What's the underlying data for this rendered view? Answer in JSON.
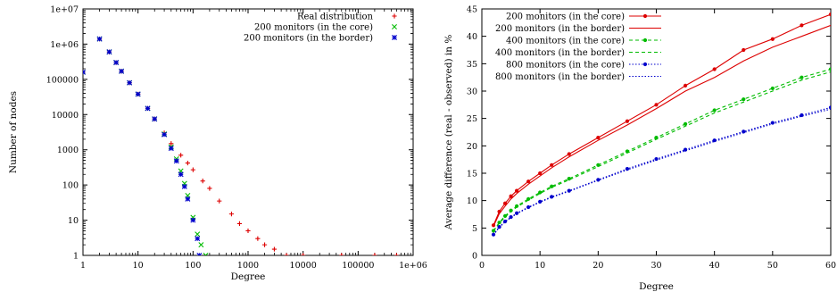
{
  "chart_data": [
    {
      "type": "scatter",
      "xlabel": "Degree",
      "ylabel": "Number of nodes",
      "xscale": "log",
      "yscale": "log",
      "xlim": [
        1,
        1000000
      ],
      "ylim": [
        1,
        10000000
      ],
      "x_ticks": [
        "1",
        "10",
        "100",
        "1000",
        "10000",
        "100000",
        "1e+06"
      ],
      "y_ticks": [
        "1",
        "10",
        "100",
        "1000",
        "10000",
        "100000",
        "1e+06",
        "1e+07"
      ],
      "legend_position": "top-right",
      "series": [
        {
          "name": "Real distribution",
          "color": "#dd0000",
          "marker": "plus",
          "points": [
            [
              1,
              160000
            ],
            [
              2,
              1400000
            ],
            [
              3,
              600000
            ],
            [
              4,
              300000
            ],
            [
              5,
              170000
            ],
            [
              7,
              80000
            ],
            [
              10,
              38000
            ],
            [
              15,
              15000
            ],
            [
              20,
              7500
            ],
            [
              30,
              3000
            ],
            [
              40,
              1500
            ],
            [
              60,
              700
            ],
            [
              80,
              420
            ],
            [
              100,
              270
            ],
            [
              150,
              130
            ],
            [
              200,
              80
            ],
            [
              300,
              35
            ],
            [
              500,
              15
            ],
            [
              700,
              8
            ],
            [
              1000,
              5
            ],
            [
              1500,
              3
            ],
            [
              2000,
              2
            ],
            [
              3000,
              1.5
            ],
            [
              5000,
              1
            ],
            [
              10000,
              1
            ],
            [
              50000,
              1
            ],
            [
              200000,
              1
            ],
            [
              500000,
              1
            ]
          ]
        },
        {
          "name": "200 monitors (in the core)",
          "color": "#00bb00",
          "marker": "x",
          "points": [
            [
              1,
              160000
            ],
            [
              2,
              1400000
            ],
            [
              3,
              600000
            ],
            [
              4,
              300000
            ],
            [
              5,
              170000
            ],
            [
              7,
              80000
            ],
            [
              10,
              38000
            ],
            [
              15,
              15000
            ],
            [
              20,
              7500
            ],
            [
              30,
              2800
            ],
            [
              40,
              1200
            ],
            [
              50,
              550
            ],
            [
              60,
              250
            ],
            [
              70,
              110
            ],
            [
              80,
              50
            ],
            [
              100,
              12
            ],
            [
              120,
              4
            ],
            [
              140,
              2
            ],
            [
              170,
              1
            ]
          ]
        },
        {
          "name": "200 monitors (in the border)",
          "color": "#0000cc",
          "marker": "star",
          "points": [
            [
              1,
              160000
            ],
            [
              2,
              1400000
            ],
            [
              3,
              600000
            ],
            [
              4,
              300000
            ],
            [
              5,
              170000
            ],
            [
              7,
              80000
            ],
            [
              10,
              38000
            ],
            [
              15,
              15000
            ],
            [
              20,
              7500
            ],
            [
              30,
              2700
            ],
            [
              40,
              1100
            ],
            [
              50,
              480
            ],
            [
              60,
              200
            ],
            [
              70,
              90
            ],
            [
              80,
              40
            ],
            [
              100,
              10
            ],
            [
              120,
              3
            ],
            [
              130,
              1
            ]
          ]
        }
      ]
    },
    {
      "type": "line",
      "xlabel": "Degree",
      "ylabel": "Average difference (real - observed) in %",
      "xlim": [
        0,
        60
      ],
      "ylim": [
        0,
        45
      ],
      "x_ticks": [
        "0",
        "10",
        "20",
        "30",
        "40",
        "50",
        "60"
      ],
      "y_ticks": [
        "0",
        "5",
        "10",
        "15",
        "20",
        "25",
        "30",
        "35",
        "40",
        "45"
      ],
      "legend_position": "top-left",
      "series": [
        {
          "name": "200 monitors (in the core)",
          "color": "#dd0000",
          "style": "solid",
          "marker": "dot",
          "x": [
            2,
            3,
            4,
            5,
            6,
            8,
            10,
            12,
            15,
            20,
            25,
            30,
            35,
            40,
            45,
            50,
            55,
            60
          ],
          "values": [
            5.5,
            8,
            9.5,
            10.8,
            11.8,
            13.5,
            15,
            16.5,
            18.5,
            21.5,
            24.5,
            27.5,
            31,
            34,
            37.5,
            39.5,
            42,
            44
          ]
        },
        {
          "name": "200 monitors (in the border)",
          "color": "#dd0000",
          "style": "solid",
          "marker": "none",
          "x": [
            2,
            3,
            4,
            5,
            6,
            8,
            10,
            12,
            15,
            20,
            25,
            30,
            35,
            40,
            45,
            50,
            55,
            60
          ],
          "values": [
            5.3,
            7.6,
            9,
            10.3,
            11.3,
            13,
            14.5,
            16,
            18,
            21,
            23.8,
            26.8,
            30,
            32.5,
            35.5,
            38,
            40,
            42
          ]
        },
        {
          "name": "400 monitors (in the core)",
          "color": "#00bb00",
          "style": "dashed",
          "marker": "dot",
          "x": [
            2,
            3,
            4,
            5,
            6,
            8,
            10,
            12,
            15,
            20,
            25,
            30,
            35,
            40,
            45,
            50,
            55,
            60
          ],
          "values": [
            4.5,
            6,
            7.2,
            8.2,
            9,
            10.3,
            11.5,
            12.6,
            14,
            16.5,
            19,
            21.5,
            24,
            26.5,
            28.5,
            30.5,
            32.5,
            34
          ]
        },
        {
          "name": "400 monitors (in the border)",
          "color": "#00bb00",
          "style": "dashed",
          "marker": "none",
          "x": [
            2,
            3,
            4,
            5,
            6,
            8,
            10,
            12,
            15,
            20,
            25,
            30,
            35,
            40,
            45,
            50,
            55,
            60
          ],
          "values": [
            4.4,
            5.9,
            7,
            8,
            8.8,
            10.1,
            11.3,
            12.4,
            13.8,
            16.2,
            18.7,
            21.2,
            23.6,
            26,
            28,
            30,
            32,
            33.5
          ]
        },
        {
          "name": "800 monitors (in the core)",
          "color": "#0000cc",
          "style": "dotted",
          "marker": "dot",
          "x": [
            2,
            3,
            4,
            5,
            6,
            8,
            10,
            12,
            15,
            20,
            25,
            30,
            35,
            40,
            45,
            50,
            55,
            60
          ],
          "values": [
            3.8,
            5.2,
            6.2,
            7,
            7.7,
            8.8,
            9.8,
            10.7,
            11.8,
            13.8,
            15.8,
            17.6,
            19.3,
            21,
            22.6,
            24.2,
            25.6,
            27
          ]
        },
        {
          "name": "800 monitors (in the border)",
          "color": "#0000cc",
          "style": "dotted",
          "marker": "none",
          "x": [
            2,
            3,
            4,
            5,
            6,
            8,
            10,
            12,
            15,
            20,
            25,
            30,
            35,
            40,
            45,
            50,
            55,
            60
          ],
          "values": [
            3.7,
            5.1,
            6.1,
            6.9,
            7.6,
            8.7,
            9.7,
            10.6,
            11.7,
            13.7,
            15.6,
            17.4,
            19.1,
            20.8,
            22.4,
            24,
            25.4,
            26.7
          ]
        }
      ]
    }
  ]
}
